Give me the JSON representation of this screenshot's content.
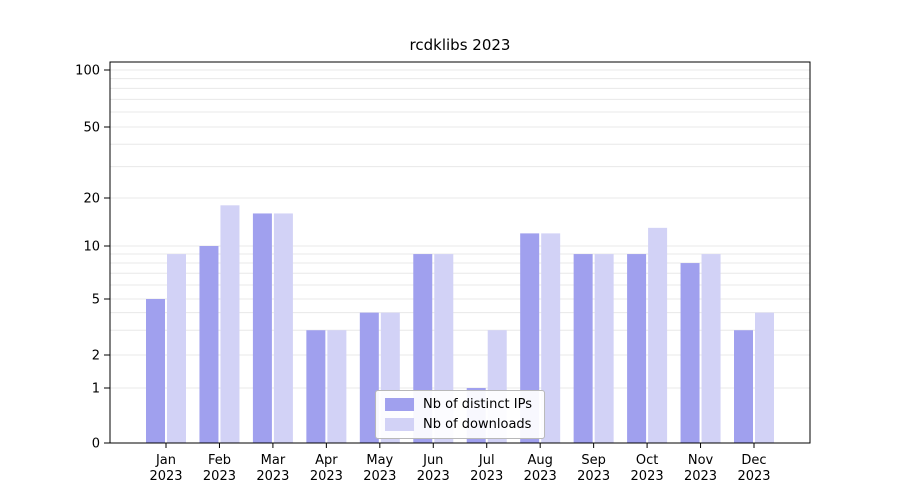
{
  "chart_data": {
    "type": "bar",
    "title": "rcdklibs 2023",
    "categories": [
      "Jan",
      "Feb",
      "Mar",
      "Apr",
      "May",
      "Jun",
      "Jul",
      "Aug",
      "Sep",
      "Oct",
      "Nov",
      "Dec"
    ],
    "year_label": "2023",
    "series": [
      {
        "name": "Nb of distinct IPs",
        "color": "#a0a0ee",
        "values": [
          5,
          10,
          16,
          3,
          4,
          9,
          1,
          12,
          9,
          9,
          8,
          3
        ]
      },
      {
        "name": "Nb of downloads",
        "color": "#d2d2f6",
        "values": [
          9,
          18,
          16,
          3,
          4,
          9,
          3,
          12,
          9,
          13,
          9,
          4
        ]
      }
    ],
    "yscale": "symlog",
    "yticks": [
      0,
      1,
      2,
      5,
      10,
      20,
      50,
      100
    ],
    "ylim": [
      0,
      100
    ],
    "grid": "horizontal-minor",
    "legend_position": "lower-center",
    "grid_color": "#e8e8e8",
    "axis_color": "#000000"
  }
}
